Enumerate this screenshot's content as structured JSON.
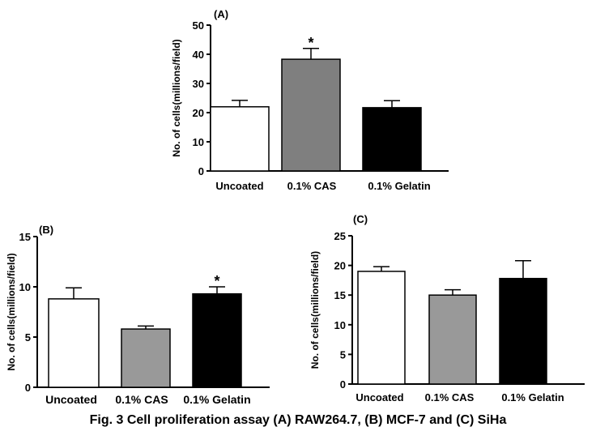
{
  "caption": "Fig. 3 Cell proliferation assay (A) RAW264.7, (B) MCF-7 and (C) SiHa",
  "chart_data": [
    {
      "type": "bar",
      "panel_label": "(A)",
      "title": "",
      "xlabel": "",
      "ylabel": "No. of cells(millions/field)",
      "ylim": [
        0,
        50
      ],
      "yticks": [
        0,
        10,
        20,
        30,
        40,
        50
      ],
      "categories": [
        "Uncoated",
        "0.1% CAS",
        "0.1% Gelatin"
      ],
      "values": [
        22,
        38.3,
        21.7
      ],
      "errors": [
        2.2,
        3.7,
        2.4
      ],
      "significance": [
        "",
        "*",
        ""
      ],
      "colors": [
        "#ffffff",
        "#7f7f7f",
        "#000000"
      ]
    },
    {
      "type": "bar",
      "panel_label": "(B)",
      "title": "",
      "xlabel": "",
      "ylabel": "No. of cells(millions/field)",
      "ylim": [
        0,
        15
      ],
      "yticks": [
        0,
        5,
        10,
        15
      ],
      "categories": [
        "Uncoated",
        "0.1% CAS",
        "0.1% Gelatin"
      ],
      "values": [
        8.8,
        5.8,
        9.3
      ],
      "errors": [
        1.1,
        0.3,
        0.7
      ],
      "significance": [
        "",
        "",
        "*"
      ],
      "colors": [
        "#ffffff",
        "#999999",
        "#000000"
      ]
    },
    {
      "type": "bar",
      "panel_label": "(C)",
      "title": "",
      "xlabel": "",
      "ylabel": "No. of cells(millions/field)",
      "ylim": [
        0,
        25
      ],
      "yticks": [
        0,
        5,
        10,
        15,
        20,
        25
      ],
      "categories": [
        "Uncoated",
        "0.1% CAS",
        "0.1% Gelatin"
      ],
      "values": [
        19,
        15,
        17.8
      ],
      "errors": [
        0.8,
        0.9,
        3
      ],
      "significance": [
        "",
        "",
        ""
      ],
      "colors": [
        "#ffffff",
        "#999999",
        "#000000"
      ]
    }
  ]
}
